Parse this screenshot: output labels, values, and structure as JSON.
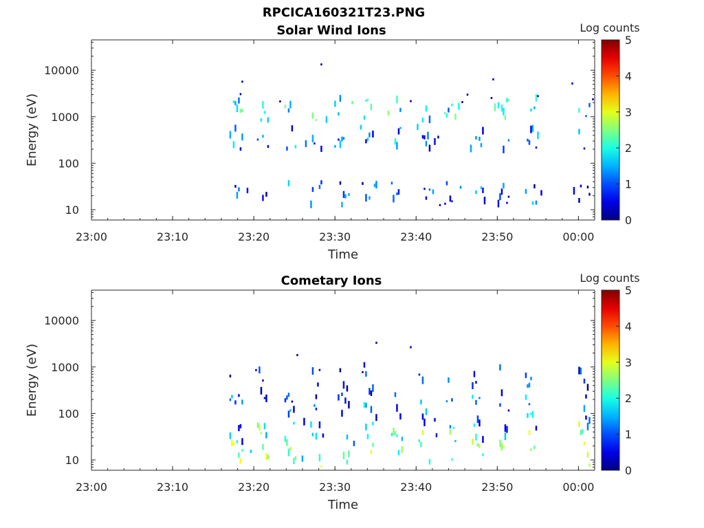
{
  "figure": {
    "title": "RPCICA160321T23.PNG"
  },
  "colors": {
    "colormap": "jet",
    "axis": "#262626",
    "text": "#000000"
  },
  "chart_data": [
    {
      "type": "heatmap",
      "title": "Solar Wind Ions",
      "xlabel": "Time",
      "ylabel": "Energy (eV)",
      "y_scale": "log",
      "ylim": [
        6,
        45000
      ],
      "xlim": [
        "23:00",
        "00:02"
      ],
      "x_ticks": [
        "23:00",
        "23:10",
        "23:20",
        "23:30",
        "23:40",
        "23:50",
        "00:00"
      ],
      "y_ticks": [
        "10",
        "100",
        "1000",
        "10000"
      ],
      "colorbar": {
        "label": "Log counts",
        "range": [
          0,
          5
        ],
        "ticks": [
          "0",
          "1",
          "2",
          "3",
          "4",
          "5"
        ]
      },
      "data_start": "23:17",
      "data_gap": [
        "23:56",
        "23:59"
      ],
      "sweep_period_min": 3.3,
      "bands": [
        {
          "energy_eV": 1500,
          "log_counts": 1.8
        },
        {
          "energy_eV": 350,
          "log_counts": 1.2
        },
        {
          "energy_eV": 22,
          "log_counts": 0.9
        }
      ]
    },
    {
      "type": "heatmap",
      "title": "Cometary Ions",
      "xlabel": "Time",
      "ylabel": "Energy (eV)",
      "y_scale": "log",
      "ylim": [
        6,
        45000
      ],
      "xlim": [
        "23:00",
        "00:02"
      ],
      "x_ticks": [
        "23:00",
        "23:10",
        "23:20",
        "23:30",
        "23:40",
        "23:50",
        "00:00"
      ],
      "y_ticks": [
        "10",
        "100",
        "1000",
        "10000"
      ],
      "colorbar": {
        "label": "Log counts",
        "range": [
          0,
          5
        ],
        "ticks": [
          "0",
          "1",
          "2",
          "3",
          "4",
          "5"
        ]
      },
      "data_start": "23:17",
      "data_gap": [
        "23:56",
        "23:59"
      ],
      "sweep_period_min": 3.3,
      "bands": [
        {
          "energy_eV": 300,
          "log_counts": 0.6
        },
        {
          "energy_eV": 80,
          "log_counts": 1.2
        },
        {
          "energy_eV": 20,
          "log_counts": 2.4
        }
      ]
    }
  ]
}
